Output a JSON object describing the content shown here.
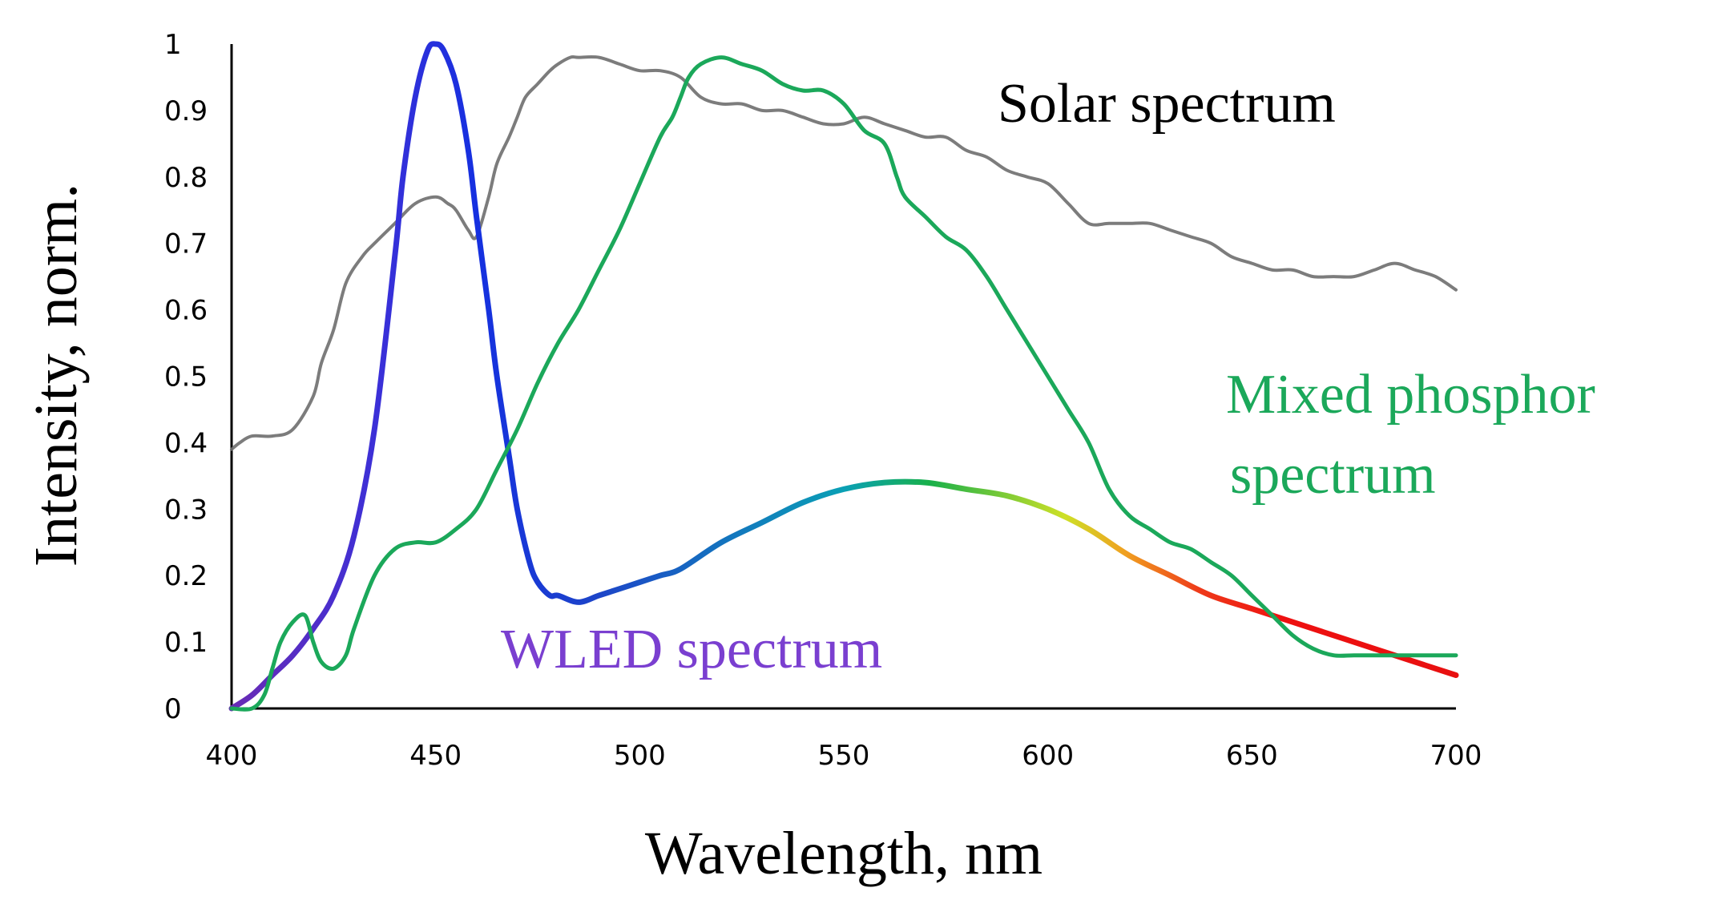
{
  "chart_data": {
    "type": "line",
    "title": "",
    "xlabel": "Wavelength, nm",
    "ylabel": "Intensity, norm.",
    "xlim": [
      400,
      700
    ],
    "ylim": [
      0,
      1
    ],
    "x_ticks": [
      "400",
      "450",
      "500",
      "550",
      "600",
      "650",
      "700"
    ],
    "y_ticks": [
      "0",
      "0.1",
      "0.2",
      "0.3",
      "0.4",
      "0.5",
      "0.6",
      "0.7",
      "0.8",
      "0.9",
      "1"
    ],
    "grid": false,
    "legend": "none",
    "series": [
      {
        "name": "Solar spectrum",
        "color": "#6e6e6e",
        "x": [
          400,
          402,
          405,
          410,
          415,
          420,
          422,
          425,
          428,
          432,
          435,
          440,
          445,
          450,
          453,
          455,
          458,
          460,
          463,
          465,
          468,
          470,
          472,
          475,
          478,
          480,
          483,
          485,
          490,
          495,
          500,
          505,
          510,
          515,
          520,
          525,
          530,
          535,
          540,
          545,
          550,
          555,
          560,
          565,
          570,
          575,
          580,
          585,
          590,
          595,
          600,
          605,
          610,
          615,
          620,
          625,
          630,
          635,
          640,
          645,
          650,
          655,
          660,
          665,
          670,
          675,
          680,
          685,
          690,
          695,
          700
        ],
        "values": [
          0.39,
          0.4,
          0.41,
          0.41,
          0.42,
          0.47,
          0.52,
          0.57,
          0.64,
          0.68,
          0.7,
          0.73,
          0.76,
          0.77,
          0.76,
          0.75,
          0.72,
          0.71,
          0.77,
          0.82,
          0.86,
          0.89,
          0.92,
          0.94,
          0.96,
          0.97,
          0.98,
          0.98,
          0.98,
          0.97,
          0.96,
          0.96,
          0.95,
          0.92,
          0.91,
          0.91,
          0.9,
          0.9,
          0.89,
          0.88,
          0.88,
          0.89,
          0.88,
          0.87,
          0.86,
          0.86,
          0.84,
          0.83,
          0.81,
          0.8,
          0.79,
          0.76,
          0.73,
          0.73,
          0.73,
          0.73,
          0.72,
          0.71,
          0.7,
          0.68,
          0.67,
          0.66,
          0.66,
          0.65,
          0.65,
          0.65,
          0.66,
          0.67,
          0.66,
          0.65,
          0.63
        ]
      },
      {
        "name": "WLED spectrum",
        "color": "#2a2ad0",
        "gradient": [
          "#6a2bb5",
          "#3b30d8",
          "#1530e0",
          "#1d45c8",
          "#0aa0b5",
          "#18b04a",
          "#cde027",
          "#f0a020",
          "#ee3a1a",
          "#ee1010",
          "#e81010"
        ],
        "x": [
          400,
          405,
          410,
          415,
          420,
          425,
          430,
          435,
          440,
          442,
          445,
          448,
          450,
          452,
          455,
          458,
          460,
          463,
          465,
          468,
          470,
          473,
          475,
          478,
          480,
          485,
          490,
          495,
          500,
          505,
          510,
          520,
          530,
          540,
          550,
          560,
          570,
          580,
          590,
          600,
          610,
          620,
          630,
          640,
          650,
          660,
          670,
          680,
          690,
          700
        ],
        "values": [
          0,
          0.02,
          0.05,
          0.08,
          0.12,
          0.17,
          0.26,
          0.42,
          0.68,
          0.8,
          0.92,
          0.99,
          1.0,
          0.99,
          0.94,
          0.84,
          0.74,
          0.6,
          0.5,
          0.38,
          0.3,
          0.22,
          0.19,
          0.17,
          0.17,
          0.16,
          0.17,
          0.18,
          0.19,
          0.2,
          0.21,
          0.25,
          0.28,
          0.31,
          0.33,
          0.34,
          0.34,
          0.33,
          0.32,
          0.3,
          0.27,
          0.23,
          0.2,
          0.17,
          0.15,
          0.13,
          0.11,
          0.09,
          0.07,
          0.05
        ]
      },
      {
        "name": "Mixed phosphor spectrum",
        "color": "#1ba85a",
        "x": [
          400,
          405,
          408,
          410,
          412,
          415,
          418,
          420,
          422,
          425,
          428,
          430,
          435,
          440,
          445,
          450,
          455,
          460,
          465,
          470,
          475,
          480,
          485,
          490,
          495,
          500,
          505,
          508,
          510,
          512,
          515,
          520,
          525,
          530,
          535,
          540,
          545,
          550,
          555,
          560,
          563,
          565,
          570,
          575,
          580,
          585,
          590,
          595,
          600,
          605,
          610,
          615,
          620,
          625,
          630,
          635,
          640,
          645,
          650,
          655,
          660,
          665,
          670,
          675,
          680,
          685,
          690,
          695,
          700
        ],
        "values": [
          0,
          0,
          0.02,
          0.06,
          0.1,
          0.13,
          0.14,
          0.1,
          0.07,
          0.06,
          0.08,
          0.12,
          0.2,
          0.24,
          0.25,
          0.25,
          0.27,
          0.3,
          0.36,
          0.42,
          0.49,
          0.55,
          0.6,
          0.66,
          0.72,
          0.79,
          0.86,
          0.89,
          0.92,
          0.95,
          0.97,
          0.98,
          0.97,
          0.96,
          0.94,
          0.93,
          0.93,
          0.91,
          0.87,
          0.85,
          0.8,
          0.77,
          0.74,
          0.71,
          0.69,
          0.65,
          0.6,
          0.55,
          0.5,
          0.45,
          0.4,
          0.33,
          0.29,
          0.27,
          0.25,
          0.24,
          0.22,
          0.2,
          0.17,
          0.14,
          0.11,
          0.09,
          0.08,
          0.08,
          0.08,
          0.08,
          0.08,
          0.08,
          0.08
        ]
      }
    ],
    "annotations": [
      {
        "text": "Solar spectrum",
        "color": "#000000"
      },
      {
        "text": "Mixed phosphor",
        "color": "#1ba85a"
      },
      {
        "text": "spectrum",
        "color": "#1ba85a"
      },
      {
        "text": "WLED spectrum",
        "color": "#7a3fd0"
      }
    ]
  }
}
